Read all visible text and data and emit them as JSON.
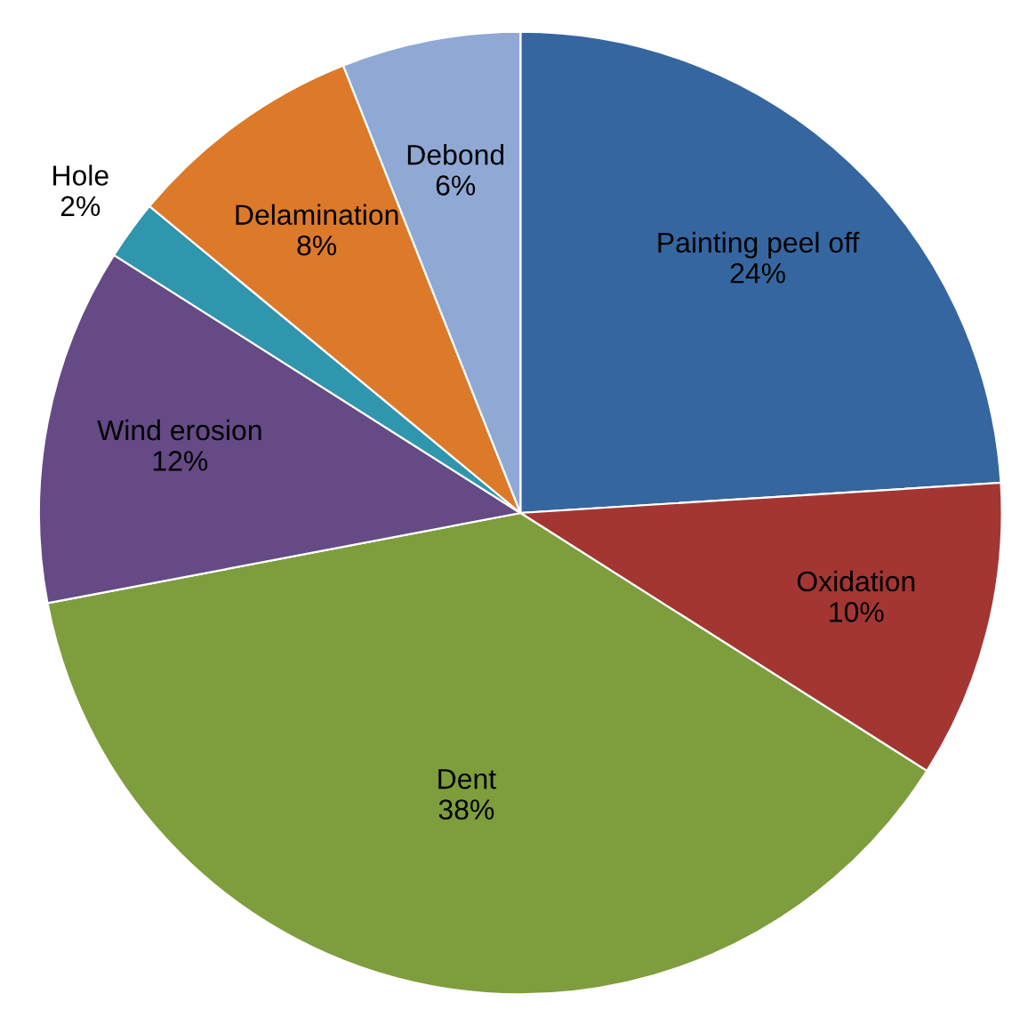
{
  "chart_data": {
    "type": "pie",
    "categories": [
      "Painting peel off",
      "Oxidation",
      "Dent",
      "Wind erosion",
      "Hole",
      "Delamination",
      "Debond"
    ],
    "values": [
      24,
      10,
      38,
      12,
      2,
      8,
      6
    ],
    "value_labels": [
      "24%",
      "10%",
      "38%",
      "12%",
      "2%",
      "8%",
      "6%"
    ],
    "colors": [
      "#3566a0",
      "#a33633",
      "#7e9d3d",
      "#654a86",
      "#2f96ad",
      "#dc7a2a",
      "#8fa9d4"
    ],
    "legend": false
  }
}
